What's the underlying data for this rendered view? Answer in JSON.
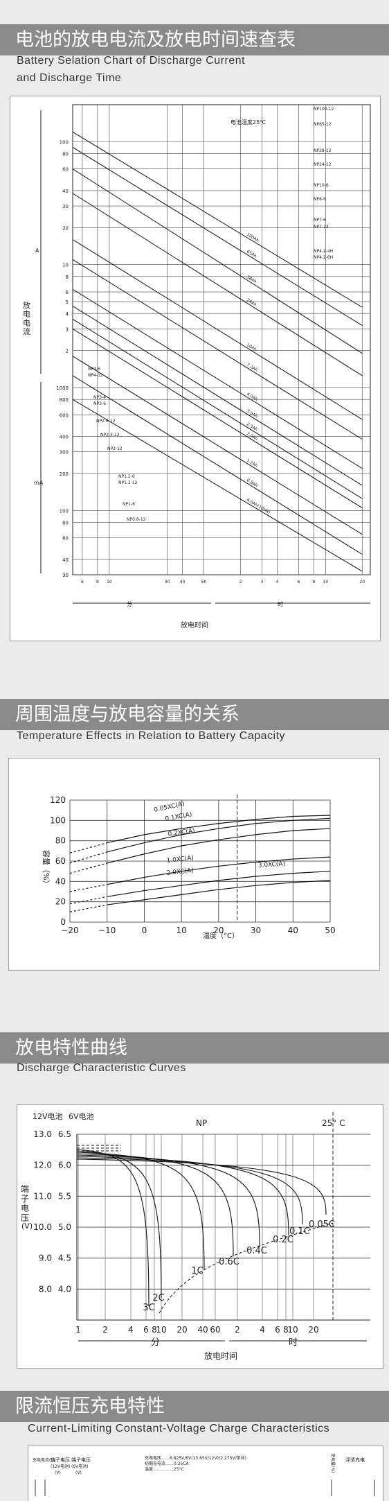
{
  "sections": [
    {
      "title": "电池的放电电流及放电时间速查表",
      "subtitle_lines": [
        "Battery Selation Chart of Discharge Current",
        "and Discharge Time"
      ]
    },
    {
      "title": "周围温度与放电容量的关系",
      "subtitle_lines": [
        "Temperature Effects in Relation to Battery Capacity"
      ]
    },
    {
      "title": "放电特性曲线",
      "subtitle_lines": [
        "Discharge Characteristic Curves"
      ]
    },
    {
      "title": "限流恒压充电特性",
      "subtitle_lines": [
        "Current-Limiting Constant-Voltage Charge Characteristics"
      ]
    }
  ],
  "chart_data": [
    {
      "type": "line",
      "note": "电池温度25℃",
      "ylabel": "放电电流",
      "xlabel": "放电时间",
      "units": {
        "upper": "A",
        "lower": "mA"
      },
      "y_ticks_A": [
        "100",
        "80",
        "60",
        "40",
        "30",
        "20",
        "10",
        "8",
        "6",
        "5",
        "4",
        "3",
        "2"
      ],
      "y_ticks_mA": [
        "1000",
        "800",
        "600",
        "400",
        "300",
        "200",
        "100",
        "80",
        "60",
        "40",
        "30"
      ],
      "x_ticks_min": [
        "6",
        "8",
        "10",
        "30",
        "40",
        "60"
      ],
      "x_ticks_h": [
        "2",
        "3",
        "4",
        "6",
        "8",
        "10",
        "20"
      ],
      "x_unit_min": "分",
      "x_unit_h": "时",
      "series": [
        {
          "name": "100Ah",
          "x": [
            5,
            1200
          ],
          "y": [
            120,
            4.5
          ]
        },
        {
          "name": "65Ah",
          "x": [
            5,
            1200
          ],
          "y": [
            90,
            3.2
          ]
        },
        {
          "name": "38Ah",
          "x": [
            5,
            1200
          ],
          "y": [
            60,
            1.9
          ]
        },
        {
          "name": "24Ah",
          "x": [
            5,
            1200
          ],
          "y": [
            38,
            1.25
          ]
        },
        {
          "name": "10Ah",
          "x": [
            5,
            1200
          ],
          "y": [
            16,
            0.55
          ]
        },
        {
          "name": "7.2Ah",
          "x": [
            5,
            1200
          ],
          "y": [
            11,
            0.38
          ]
        },
        {
          "name": "4.0Ah",
          "x": [
            5,
            1200
          ],
          "y": [
            6.3,
            0.22
          ]
        },
        {
          "name": "3.0Ah",
          "x": [
            5,
            1200
          ],
          "y": [
            4.6,
            0.16
          ]
        },
        {
          "name": "2.3Ah",
          "x": [
            5,
            1200
          ],
          "y": [
            3.6,
            0.125
          ]
        },
        {
          "name": "2.0Ah",
          "x": [
            5,
            1200
          ],
          "y": [
            3.0,
            0.105
          ]
        },
        {
          "name": "1.2Ah",
          "x": [
            5,
            1200
          ],
          "y": [
            1.8,
            0.064
          ]
        },
        {
          "name": "0.8Ah",
          "x": [
            5,
            1200
          ],
          "y": [
            1.25,
            0.044
          ]
        },
        {
          "name": "4.0Ah(10HR)",
          "x": [
            5,
            1200
          ],
          "y": [
            0.8,
            0.032
          ]
        }
      ],
      "model_labels_right": [
        "NP100-12",
        "NP65-12",
        "NP38-12",
        "NP24-12",
        "NP10-6",
        "NP8-6",
        "NP7-6",
        "NP7-12",
        "NP4.2-4H",
        "NP4.2-6H"
      ],
      "model_labels_left": [
        "NP4-6",
        "NP4-12",
        "NP3-4",
        "NP3-6",
        "NP2.6-12",
        "NP2.3-12",
        "NP2-12",
        "NP1.2-6",
        "NP1.2-12",
        "NP1-6",
        "NP0.8-12"
      ]
    },
    {
      "type": "line",
      "xlabel": "温度（°C）",
      "ylabel": "容量（%）",
      "xlim": [
        -20,
        50
      ],
      "ylim": [
        0,
        120
      ],
      "x_ticks": [
        "−20",
        "−10",
        "0",
        "10",
        "20",
        "30",
        "40",
        "50"
      ],
      "y_ticks": [
        "0",
        "20",
        "40",
        "60",
        "80",
        "100",
        "120"
      ],
      "marker_x": 25,
      "series": [
        {
          "name": "0.05XC(A)",
          "x": [
            -20,
            -10,
            0,
            10,
            20,
            30,
            40,
            50
          ],
          "y": [
            68,
            78,
            86,
            92,
            97,
            101,
            104,
            105
          ]
        },
        {
          "name": "0.1XC(A)",
          "x": [
            -20,
            -10,
            0,
            10,
            20,
            30,
            40,
            50
          ],
          "y": [
            58,
            69,
            78,
            86,
            92,
            97,
            100,
            102
          ]
        },
        {
          "name": "0.2XC(A)",
          "x": [
            -20,
            -10,
            0,
            10,
            20,
            30,
            40,
            50
          ],
          "y": [
            48,
            58,
            67,
            75,
            81,
            86,
            90,
            92
          ]
        },
        {
          "name": "1.0XC(A)",
          "x": [
            -20,
            -10,
            0,
            10,
            20,
            30,
            40,
            50
          ],
          "y": [
            30,
            37,
            44,
            50,
            55,
            59,
            62,
            64
          ]
        },
        {
          "name": "2.0XC(A)",
          "x": [
            -20,
            -10,
            0,
            10,
            20,
            30,
            40,
            50
          ],
          "y": [
            18,
            25,
            31,
            36,
            41,
            45,
            48,
            50
          ]
        },
        {
          "name": "3.0XC(A)",
          "x": [
            -20,
            -10,
            0,
            10,
            20,
            30,
            40,
            50
          ],
          "y": [
            10,
            17,
            22,
            27,
            32,
            36,
            39,
            41
          ]
        }
      ]
    },
    {
      "type": "line",
      "header_12v": "12V电池",
      "header_6v": "6V电池",
      "model": "NP",
      "temp": "25° C",
      "ylabel": "端子电压",
      "ylabel_unit": "(V)",
      "xlabel": "放电时间",
      "x_unit_min": "分",
      "x_unit_h": "时",
      "y_ticks_12v": [
        "13.0",
        "12.0",
        "11.0",
        "10.0",
        "9.0",
        "8.0"
      ],
      "y_ticks_6v": [
        "6.5",
        "6.0",
        "5.5",
        "5.0",
        "4.5",
        "4.0"
      ],
      "x_ticks": [
        "1",
        "2",
        "4",
        "6",
        "8",
        "10",
        "20",
        "40",
        "60",
        "2",
        "4",
        "6",
        "8",
        "10",
        "20"
      ],
      "series_labels": [
        "3C",
        "2C",
        "1C",
        "0.6C",
        "0.4C",
        "0.2C",
        "0.1C",
        "0.05C"
      ]
    },
    {
      "type": "line",
      "header_left_1": "充电电流(C)",
      "header_left_2": "端子电压",
      "header_left_3": "端子电压",
      "header_left_4": "(12V电池)",
      "header_left_5": "(6V电池)",
      "header_left_6": "(V)",
      "header_left_7": "(V)",
      "charge_volt": "充电电压……6.825V/6V(13.65V/12V)(2.275V/单体)",
      "charge_curr": "初期充电流……0.25CA",
      "charge_temp": "温度……………25°C",
      "right_label": "浮须充电",
      "right_side": "充电量(%)"
    }
  ]
}
